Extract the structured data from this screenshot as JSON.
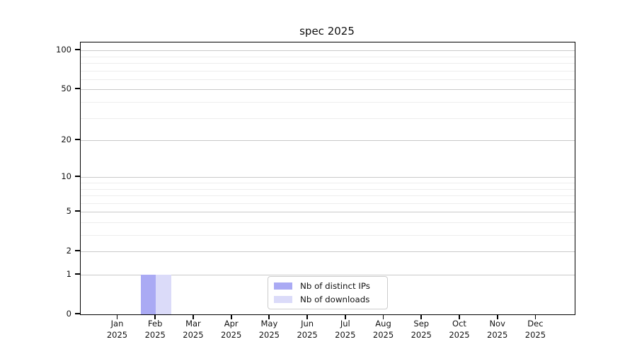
{
  "chart_data": {
    "type": "bar",
    "title": "spec 2025",
    "x_axis": {
      "months": [
        "Jan",
        "Feb",
        "Mar",
        "Apr",
        "May",
        "Jun",
        "Jul",
        "Aug",
        "Sep",
        "Oct",
        "Nov",
        "Dec"
      ],
      "year": "2025"
    },
    "y_axis": {
      "scale": "log10(1+y)",
      "major_ticks": [
        0,
        1,
        2,
        5,
        10,
        20,
        50,
        100
      ],
      "minor_gridlines": [
        3,
        4,
        6,
        7,
        8,
        9,
        30,
        40,
        60,
        70,
        80,
        90
      ],
      "ylim": [
        0,
        115
      ],
      "grid": true
    },
    "series": [
      {
        "name": "Nb of distinct IPs",
        "color": "#aaaaf4",
        "values": [
          0,
          1,
          0,
          0,
          0,
          0,
          0,
          0,
          0,
          0,
          0,
          0
        ]
      },
      {
        "name": "Nb of downloads",
        "color": "#dbdbf9",
        "values": [
          0,
          1,
          0,
          0,
          0,
          0,
          0,
          0,
          0,
          0,
          0,
          0
        ]
      }
    ],
    "legend": {
      "position": "lower center"
    },
    "colors": {
      "major_grid": "#c9c9c9",
      "minor_grid": "#ededed",
      "spine": "#000000",
      "text": "#111111",
      "background": "#ffffff"
    }
  }
}
